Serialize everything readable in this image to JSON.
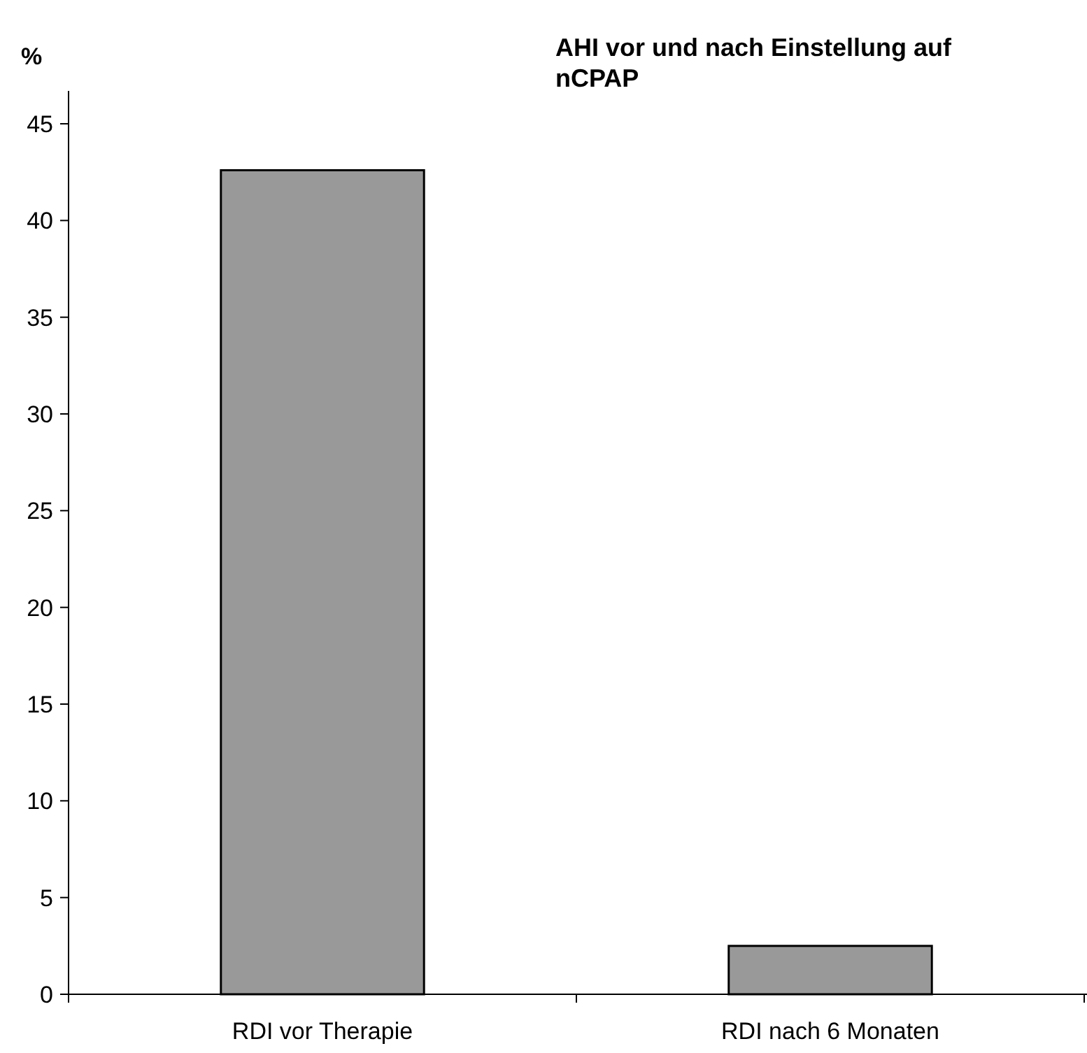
{
  "chart_data": {
    "type": "bar",
    "title": "AHI vor und nach Einstellung auf nCPAP",
    "ylabel": "%",
    "categories": [
      "RDI vor Therapie",
      "RDI nach 6 Monaten"
    ],
    "values": [
      42.6,
      2.5
    ],
    "color": "#999999",
    "ylim": [
      0,
      46.7
    ],
    "yticks": [
      0,
      5,
      10,
      15,
      20,
      25,
      30,
      35,
      40,
      45
    ],
    "grid": false
  }
}
